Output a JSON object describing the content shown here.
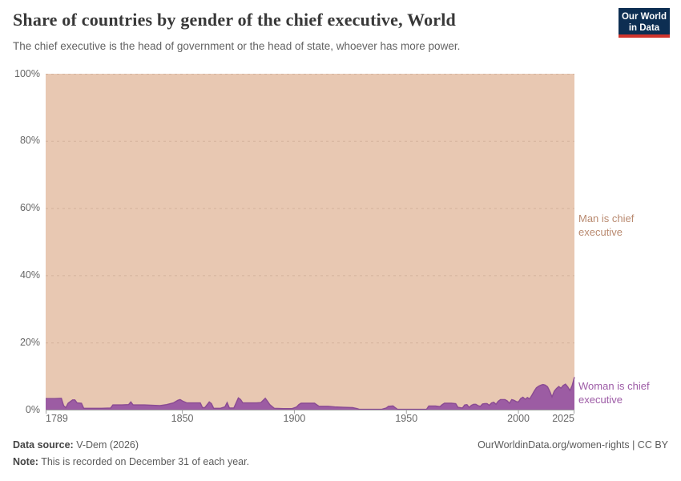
{
  "header": {
    "title": "Share of countries by gender of the chief executive, World",
    "subtitle": "The chief executive is the head of government or the head of state, whoever has more power.",
    "logo_line1": "Our World",
    "logo_line2": "in Data"
  },
  "annotations": {
    "man_label": "Man is chief executive",
    "woman_label": "Woman is chief executive"
  },
  "footer": {
    "source_label": "Data source:",
    "source_value": " V-Dem (2026)",
    "note_label": "Note:",
    "note_value": " This is recorded on December 31 of each year.",
    "link": "OurWorldinData.org/women-rights | CC BY"
  },
  "colors": {
    "man_area": "#e8c8b2",
    "woman_area": "#9c5ca3",
    "woman_edge": "#8a4b93",
    "man_label": "#b98a70",
    "woman_label": "#9d5ba6",
    "axis": "#a1a1a1",
    "grid": "rgba(110,70,45,0.16)",
    "logo_bg": "#0d2e52",
    "logo_red": "#d0342c"
  },
  "chart_data": {
    "type": "area",
    "stacked": true,
    "title": "Share of countries by gender of the chief executive, World",
    "unit": "%",
    "x_range": [
      1789,
      2025
    ],
    "y_range": [
      0,
      100
    ],
    "grid": "dashed-horizontal",
    "legend_position": "right-edge-labels",
    "y_ticks": [
      {
        "label": "0%",
        "value": 0
      },
      {
        "label": "20%",
        "value": 20
      },
      {
        "label": "40%",
        "value": 40
      },
      {
        "label": "60%",
        "value": 60
      },
      {
        "label": "80%",
        "value": 80
      },
      {
        "label": "100%",
        "value": 100
      }
    ],
    "x_ticks": [
      {
        "label": "1789",
        "year": 1789,
        "align": "left"
      },
      {
        "label": "1850",
        "year": 1850,
        "align": "center"
      },
      {
        "label": "1900",
        "year": 1900,
        "align": "center"
      },
      {
        "label": "1950",
        "year": 1950,
        "align": "center"
      },
      {
        "label": "2000",
        "year": 2000,
        "align": "center"
      },
      {
        "label": "2025",
        "year": 2025,
        "align": "right"
      }
    ],
    "series": [
      {
        "name": "Woman is chief executive",
        "note": "share of countries, percent; approximate values read from chart",
        "points": [
          [
            1789,
            3.3
          ],
          [
            1793,
            3.3
          ],
          [
            1796,
            3.4
          ],
          [
            1797,
            1.2
          ],
          [
            1798,
            0.6
          ],
          [
            1799,
            1.9
          ],
          [
            1801,
            2.9
          ],
          [
            1802,
            2.9
          ],
          [
            1803,
            2.0
          ],
          [
            1805,
            1.9
          ],
          [
            1806,
            0.4
          ],
          [
            1810,
            0.4
          ],
          [
            1814,
            0.4
          ],
          [
            1818,
            0.5
          ],
          [
            1819,
            1.4
          ],
          [
            1823,
            1.4
          ],
          [
            1826,
            1.5
          ],
          [
            1827,
            2.3
          ],
          [
            1828,
            1.4
          ],
          [
            1833,
            1.4
          ],
          [
            1837,
            1.3
          ],
          [
            1840,
            1.2
          ],
          [
            1843,
            1.5
          ],
          [
            1846,
            2.0
          ],
          [
            1848,
            2.8
          ],
          [
            1849,
            3.0
          ],
          [
            1850,
            2.6
          ],
          [
            1852,
            2.0
          ],
          [
            1855,
            2.0
          ],
          [
            1858,
            2.0
          ],
          [
            1859,
            0.6
          ],
          [
            1860,
            0.6
          ],
          [
            1862,
            2.3
          ],
          [
            1863,
            1.8
          ],
          [
            1864,
            0.4
          ],
          [
            1867,
            0.4
          ],
          [
            1869,
            0.8
          ],
          [
            1870,
            2.1
          ],
          [
            1871,
            0.5
          ],
          [
            1873,
            0.5
          ],
          [
            1874,
            2.0
          ],
          [
            1875,
            3.5
          ],
          [
            1876,
            3.0
          ],
          [
            1877,
            2.0
          ],
          [
            1880,
            2.0
          ],
          [
            1883,
            2.0
          ],
          [
            1885,
            2.1
          ],
          [
            1887,
            3.4
          ],
          [
            1888,
            2.5
          ],
          [
            1889,
            1.5
          ],
          [
            1891,
            0.4
          ],
          [
            1895,
            0.3
          ],
          [
            1899,
            0.3
          ],
          [
            1901,
            0.8
          ],
          [
            1902,
            1.5
          ],
          [
            1903,
            1.9
          ],
          [
            1906,
            1.9
          ],
          [
            1909,
            1.9
          ],
          [
            1911,
            1.0
          ],
          [
            1915,
            1.0
          ],
          [
            1918,
            0.8
          ],
          [
            1922,
            0.7
          ],
          [
            1926,
            0.6
          ],
          [
            1928,
            0.3
          ],
          [
            1929,
            0.1
          ],
          [
            1934,
            0.1
          ],
          [
            1939,
            0.1
          ],
          [
            1941,
            0.5
          ],
          [
            1942,
            1.0
          ],
          [
            1944,
            1.1
          ],
          [
            1945,
            0.6
          ],
          [
            1946,
            0.1
          ],
          [
            1951,
            0.1
          ],
          [
            1955,
            0.1
          ],
          [
            1959,
            0.1
          ],
          [
            1960,
            1.1
          ],
          [
            1963,
            1.1
          ],
          [
            1965,
            0.9
          ],
          [
            1966,
            1.5
          ],
          [
            1967,
            1.9
          ],
          [
            1970,
            1.9
          ],
          [
            1972,
            1.8
          ],
          [
            1973,
            0.7
          ],
          [
            1975,
            0.5
          ],
          [
            1976,
            1.4
          ],
          [
            1977,
            1.5
          ],
          [
            1978,
            0.7
          ],
          [
            1979,
            1.3
          ],
          [
            1980,
            1.6
          ],
          [
            1981,
            1.6
          ],
          [
            1982,
            1.2
          ],
          [
            1983,
            1.0
          ],
          [
            1984,
            1.7
          ],
          [
            1985,
            1.8
          ],
          [
            1986,
            1.8
          ],
          [
            1987,
            1.3
          ],
          [
            1988,
            2.0
          ],
          [
            1989,
            2.2
          ],
          [
            1990,
            1.6
          ],
          [
            1991,
            2.5
          ],
          [
            1992,
            3.0
          ],
          [
            1994,
            3.0
          ],
          [
            1995,
            2.6
          ],
          [
            1996,
            1.9
          ],
          [
            1997,
            3.0
          ],
          [
            1998,
            2.8
          ],
          [
            1999,
            2.4
          ],
          [
            2000,
            2.3
          ],
          [
            2001,
            3.3
          ],
          [
            2002,
            3.7
          ],
          [
            2003,
            3.1
          ],
          [
            2004,
            3.6
          ],
          [
            2005,
            3.2
          ],
          [
            2006,
            4.3
          ],
          [
            2007,
            5.5
          ],
          [
            2008,
            6.5
          ],
          [
            2009,
            7.0
          ],
          [
            2010,
            7.3
          ],
          [
            2011,
            7.5
          ],
          [
            2012,
            7.3
          ],
          [
            2013,
            6.8
          ],
          [
            2014,
            5.5
          ],
          [
            2015,
            3.8
          ],
          [
            2016,
            5.5
          ],
          [
            2017,
            6.3
          ],
          [
            2018,
            6.9
          ],
          [
            2019,
            6.4
          ],
          [
            2020,
            7.2
          ],
          [
            2021,
            7.6
          ],
          [
            2022,
            6.8
          ],
          [
            2023,
            5.7
          ],
          [
            2024,
            7.2
          ],
          [
            2025,
            9.7
          ]
        ]
      },
      {
        "name": "Man is chief executive",
        "note": "stacked remainder: 100 minus woman share at every year"
      }
    ]
  }
}
